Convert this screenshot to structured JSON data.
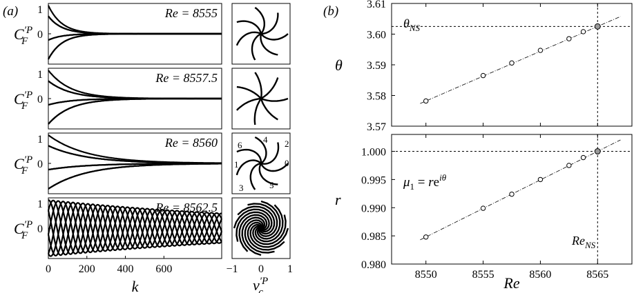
{
  "panel_labels": {
    "a": "(a)",
    "b": "(b)"
  },
  "chart_data": [
    {
      "type": "line",
      "panel": "a",
      "xlabel": "k",
      "ylabel": "C_F^{′P}",
      "xlim": [
        0,
        900
      ],
      "ylim": [
        -1,
        1
      ],
      "xticks": [
        "0",
        "200",
        "400",
        "600"
      ],
      "yticks": [
        "1",
        "0"
      ],
      "phase_xlabel": "v_c^{′P}",
      "phase_xticks": [
        "−1",
        "0",
        "1"
      ],
      "mode_labels": [
        "0",
        "1",
        "2",
        "3",
        "4",
        "5",
        "6"
      ],
      "rows": [
        {
          "label": "Re = 8555",
          "amplitude_decay": "fast"
        },
        {
          "label": "Re = 8557.5",
          "amplitude_decay": "moderate"
        },
        {
          "label": "Re = 8560",
          "amplitude_decay": "slow"
        },
        {
          "label": "Re = 8562.5",
          "amplitude_decay": "very slow"
        }
      ]
    },
    {
      "type": "scatter",
      "panel": "b-top",
      "ylabel": "θ",
      "xlim": [
        8547,
        8568
      ],
      "ylim": [
        3.57,
        3.61
      ],
      "yticks": [
        "3.61",
        "3.60",
        "3.59",
        "3.58",
        "3.57"
      ],
      "reference_label": "θ_NS",
      "reference_value": 3.6025,
      "x": [
        8550,
        8555,
        8557.5,
        8560,
        8562.5,
        8563.75,
        8565
      ],
      "y": [
        3.5782,
        3.5865,
        3.5906,
        3.5947,
        3.5985,
        3.6008,
        3.6025
      ],
      "highlight_index": 6
    },
    {
      "type": "scatter",
      "panel": "b-bottom",
      "xlabel": "Re",
      "ylabel": "r",
      "xlim": [
        8547,
        8568
      ],
      "ylim": [
        0.98,
        1.003
      ],
      "xticks": [
        "8550",
        "8555",
        "8560",
        "8565"
      ],
      "yticks": [
        "1.000",
        "0.995",
        "0.990",
        "0.985",
        "0.980"
      ],
      "annotation": "μ₁ = re^{iθ}",
      "reference_label": "Re_NS",
      "reference_value": 8565,
      "x": [
        8550,
        8555,
        8557.5,
        8560,
        8562.5,
        8563.75,
        8565
      ],
      "y": [
        0.9848,
        0.9899,
        0.9924,
        0.995,
        0.9975,
        0.9989,
        1.0
      ],
      "highlight_index": 6
    }
  ]
}
